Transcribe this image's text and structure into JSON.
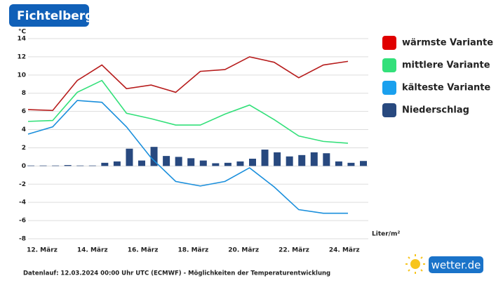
{
  "chart_data": {
    "type": "line",
    "title": "Fichtelberg",
    "y_unit": "°C",
    "y2_unit": "Liter/m²",
    "x_labels": [
      "12. März",
      "14. März",
      "16. März",
      "18. März",
      "20. März",
      "22. März",
      "24. März"
    ],
    "ylim": [
      -8,
      14
    ],
    "yticks": [
      -8,
      -6,
      -4,
      -2,
      0,
      2,
      4,
      6,
      8,
      10,
      12,
      14
    ],
    "grid": true,
    "legend": "right",
    "series": [
      {
        "name": "wärmste Variante",
        "type": "line",
        "color": "#b71c1c",
        "legend_color": "#e00000",
        "values": [
          6.2,
          6.1,
          9.4,
          11.1,
          8.5,
          8.9,
          8.1,
          10.4,
          10.6,
          12.0,
          11.4,
          9.7,
          11.1,
          11.5
        ]
      },
      {
        "name": "mittlere Variante",
        "type": "line",
        "color": "#33e07a",
        "legend_color": "#33e07a",
        "values": [
          4.9,
          5.0,
          8.1,
          9.4,
          5.8,
          5.2,
          4.5,
          4.5,
          5.7,
          6.7,
          5.1,
          3.3,
          2.7,
          2.5
        ]
      },
      {
        "name": "kälteste Variante",
        "type": "line",
        "color": "#1a8fdc",
        "legend_color": "#1aa0ee",
        "values": [
          3.5,
          4.3,
          7.2,
          7.0,
          4.3,
          0.9,
          -1.7,
          -2.2,
          -1.7,
          -0.2,
          -2.3,
          -4.8,
          -5.2,
          -5.2
        ]
      },
      {
        "name": "Niederschlag",
        "type": "bar",
        "color": "#28497f",
        "legend_color": "#28497f",
        "values": [
          0.05,
          0.05,
          0.05,
          0.1,
          0.05,
          0.05,
          0.35,
          0.5,
          1.9,
          0.6,
          2.1,
          1.1,
          1.0,
          0.85,
          0.6,
          0.3,
          0.35,
          0.5,
          0.8,
          1.8,
          1.5,
          1.05,
          1.2,
          1.5,
          1.4,
          0.5,
          0.35,
          0.55
        ]
      }
    ]
  },
  "footer": "Datenlauf: 12.03.2024 00:00 Uhr UTC (ECMWF) - Möglichkeiten der Temperaturentwicklung",
  "logo": "wetter.de"
}
